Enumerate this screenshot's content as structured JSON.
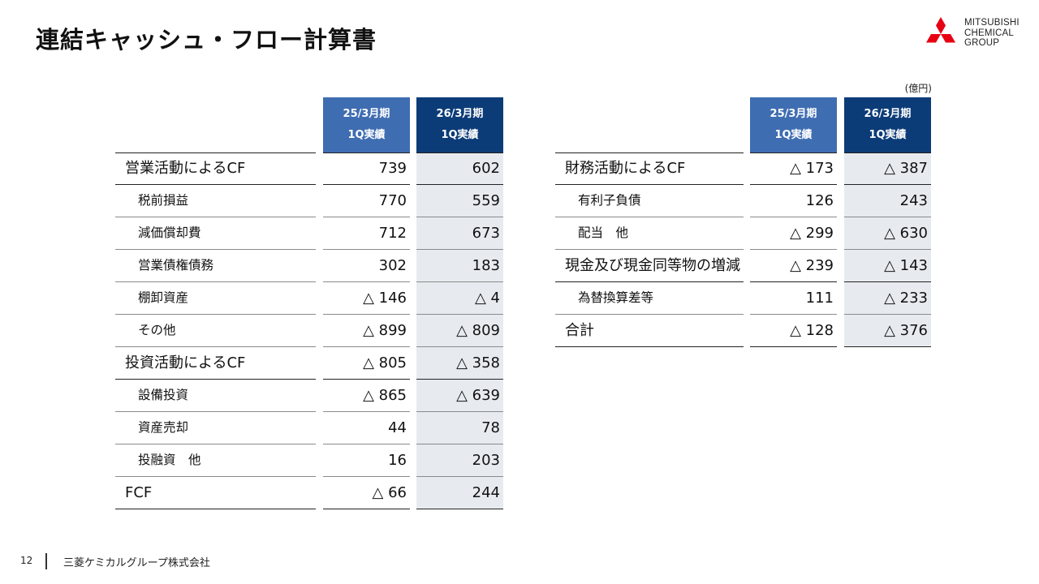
{
  "title": "連結キャッシュ・フロー計算書",
  "logo": {
    "line1": "MITSUBISHI",
    "line2": "CHEMICAL",
    "line3": "GROUP"
  },
  "unit": "(億円)",
  "headers": {
    "prev_line1": "25/3月期",
    "prev_line2": "1Q実績",
    "curr_line1": "26/3月期",
    "curr_line2": "1Q実績"
  },
  "left_table": [
    {
      "label": "営業活動によるCF",
      "prev": "739",
      "curr": "602",
      "level": "major"
    },
    {
      "label": "税前損益",
      "prev": "770",
      "curr": "559",
      "level": "minor"
    },
    {
      "label": "減価償却費",
      "prev": "712",
      "curr": "673",
      "level": "minor"
    },
    {
      "label": "営業債権債務",
      "prev": "302",
      "curr": "183",
      "level": "minor"
    },
    {
      "label": "棚卸資産",
      "prev": "△ 146",
      "curr": "△ 4",
      "level": "minor"
    },
    {
      "label": "その他",
      "prev": "△ 899",
      "curr": "△ 809",
      "level": "minor"
    },
    {
      "label": "投資活動によるCF",
      "prev": "△ 805",
      "curr": "△ 358",
      "level": "major"
    },
    {
      "label": "設備投資",
      "prev": "△ 865",
      "curr": "△ 639",
      "level": "minor"
    },
    {
      "label": "資産売却",
      "prev": "44",
      "curr": "78",
      "level": "minor"
    },
    {
      "label": "投融資　他",
      "prev": "16",
      "curr": "203",
      "level": "minor"
    },
    {
      "label": "FCF",
      "prev": "△ 66",
      "curr": "244",
      "level": "major"
    }
  ],
  "right_table": [
    {
      "label": "財務活動によるCF",
      "prev": "△ 173",
      "curr": "△ 387",
      "level": "major"
    },
    {
      "label": "有利子負債",
      "prev": "126",
      "curr": "243",
      "level": "minor"
    },
    {
      "label": "配当　他",
      "prev": "△ 299",
      "curr": "△ 630",
      "level": "minor"
    },
    {
      "label": "現金及び現金同等物の増減",
      "prev": "△ 239",
      "curr": "△ 143",
      "level": "major"
    },
    {
      "label": "為替換算差等",
      "prev": "111",
      "curr": "△ 233",
      "level": "minor"
    },
    {
      "label": "合計",
      "prev": "△ 128",
      "curr": "△ 376",
      "level": "major"
    }
  ],
  "footer": {
    "page": "12",
    "company": "三菱ケミカルグループ株式会社"
  },
  "colors": {
    "header_prev": "#3f6db2",
    "header_curr": "#0c3c78",
    "shade": "#e7ebf0",
    "logo_red": "#e60012"
  }
}
